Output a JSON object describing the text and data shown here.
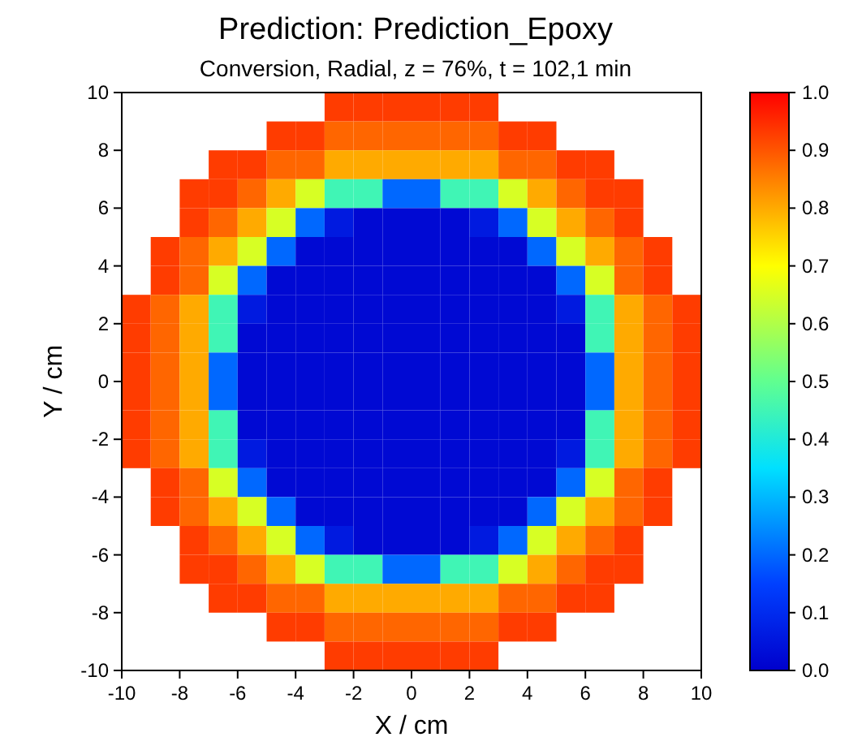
{
  "chart_data": {
    "type": "heatmap",
    "title": "Prediction: Prediction_Epoxy",
    "subtitle": "Conversion, Radial, z = 76%, t = 102,1 min",
    "xlabel": "X / cm",
    "ylabel": "Y / cm",
    "xlim": [
      -10,
      10
    ],
    "ylim": [
      -10,
      10
    ],
    "xticks": [
      -10,
      -8,
      -6,
      -4,
      -2,
      0,
      2,
      4,
      6,
      8,
      10
    ],
    "yticks": [
      -10,
      -8,
      -6,
      -4,
      -2,
      0,
      2,
      4,
      6,
      8,
      10
    ],
    "clim": [
      0,
      1
    ],
    "cticks": [
      {
        "value": 0,
        "label": "0.0"
      },
      {
        "value": 0.1,
        "label": "0.1"
      },
      {
        "value": 0.2,
        "label": "0.2"
      },
      {
        "value": 0.3,
        "label": "0.3"
      },
      {
        "value": 0.4,
        "label": "0.4"
      },
      {
        "value": 0.5,
        "label": "0.5"
      },
      {
        "value": 0.6,
        "label": "0.6"
      },
      {
        "value": 0.7,
        "label": "0.7"
      },
      {
        "value": 0.8,
        "label": "0.8"
      },
      {
        "value": 0.9,
        "label": "0.9"
      },
      {
        "value": 1,
        "label": "1.0"
      }
    ],
    "cells": [
      [
        null,
        null,
        null,
        null,
        null,
        null,
        null,
        0.93,
        0.93,
        0.93,
        0.93,
        0.93,
        0.93,
        null,
        null,
        null,
        null,
        null,
        null,
        null
      ],
      [
        null,
        null,
        null,
        null,
        null,
        0.93,
        0.93,
        0.88,
        0.88,
        0.88,
        0.88,
        0.88,
        0.88,
        0.93,
        0.93,
        null,
        null,
        null,
        null,
        null
      ],
      [
        null,
        null,
        null,
        0.93,
        0.93,
        0.88,
        0.88,
        0.8,
        0.8,
        0.8,
        0.8,
        0.8,
        0.8,
        0.88,
        0.88,
        0.93,
        0.93,
        null,
        null,
        null
      ],
      [
        null,
        null,
        0.93,
        0.93,
        0.88,
        0.8,
        0.65,
        0.45,
        0.45,
        0.2,
        0.2,
        0.45,
        0.45,
        0.65,
        0.8,
        0.88,
        0.93,
        0.93,
        null,
        null
      ],
      [
        null,
        null,
        0.93,
        0.88,
        0.8,
        0.65,
        0.2,
        0.06,
        0.02,
        0.02,
        0.02,
        0.02,
        0.06,
        0.2,
        0.65,
        0.8,
        0.88,
        0.93,
        null,
        null
      ],
      [
        null,
        0.93,
        0.88,
        0.8,
        0.65,
        0.2,
        0.02,
        0.02,
        0.02,
        0.02,
        0.02,
        0.02,
        0.02,
        0.02,
        0.2,
        0.65,
        0.8,
        0.88,
        0.93,
        null
      ],
      [
        null,
        0.93,
        0.88,
        0.65,
        0.2,
        0.02,
        0.02,
        0.02,
        0.02,
        0.02,
        0.02,
        0.02,
        0.02,
        0.02,
        0.02,
        0.2,
        0.65,
        0.88,
        0.93,
        null
      ],
      [
        0.93,
        0.88,
        0.8,
        0.45,
        0.06,
        0.02,
        0.02,
        0.02,
        0.02,
        0.02,
        0.02,
        0.02,
        0.02,
        0.02,
        0.02,
        0.06,
        0.45,
        0.8,
        0.88,
        0.93
      ],
      [
        0.93,
        0.88,
        0.8,
        0.45,
        0.02,
        0.02,
        0.02,
        0.02,
        0.02,
        0.02,
        0.02,
        0.02,
        0.02,
        0.02,
        0.02,
        0.02,
        0.45,
        0.8,
        0.88,
        0.93
      ],
      [
        0.93,
        0.88,
        0.8,
        0.2,
        0.02,
        0.02,
        0.02,
        0.02,
        0.02,
        0.02,
        0.02,
        0.02,
        0.02,
        0.02,
        0.02,
        0.02,
        0.2,
        0.8,
        0.88,
        0.93
      ],
      [
        0.93,
        0.88,
        0.8,
        0.2,
        0.02,
        0.02,
        0.02,
        0.02,
        0.02,
        0.02,
        0.02,
        0.02,
        0.02,
        0.02,
        0.02,
        0.02,
        0.2,
        0.8,
        0.88,
        0.93
      ],
      [
        0.93,
        0.88,
        0.8,
        0.45,
        0.02,
        0.02,
        0.02,
        0.02,
        0.02,
        0.02,
        0.02,
        0.02,
        0.02,
        0.02,
        0.02,
        0.02,
        0.45,
        0.8,
        0.88,
        0.93
      ],
      [
        0.93,
        0.88,
        0.8,
        0.45,
        0.06,
        0.02,
        0.02,
        0.02,
        0.02,
        0.02,
        0.02,
        0.02,
        0.02,
        0.02,
        0.02,
        0.06,
        0.45,
        0.8,
        0.88,
        0.93
      ],
      [
        null,
        0.93,
        0.88,
        0.65,
        0.2,
        0.02,
        0.02,
        0.02,
        0.02,
        0.02,
        0.02,
        0.02,
        0.02,
        0.02,
        0.02,
        0.2,
        0.65,
        0.88,
        0.93,
        null
      ],
      [
        null,
        0.93,
        0.88,
        0.8,
        0.65,
        0.2,
        0.02,
        0.02,
        0.02,
        0.02,
        0.02,
        0.02,
        0.02,
        0.02,
        0.2,
        0.65,
        0.8,
        0.88,
        0.93,
        null
      ],
      [
        null,
        null,
        0.93,
        0.88,
        0.8,
        0.65,
        0.2,
        0.06,
        0.02,
        0.02,
        0.02,
        0.02,
        0.06,
        0.2,
        0.65,
        0.8,
        0.88,
        0.93,
        null,
        null
      ],
      [
        null,
        null,
        0.93,
        0.93,
        0.88,
        0.8,
        0.65,
        0.45,
        0.45,
        0.2,
        0.2,
        0.45,
        0.45,
        0.65,
        0.8,
        0.88,
        0.93,
        0.93,
        null,
        null
      ],
      [
        null,
        null,
        null,
        0.93,
        0.93,
        0.88,
        0.88,
        0.8,
        0.8,
        0.8,
        0.8,
        0.8,
        0.8,
        0.88,
        0.88,
        0.93,
        0.93,
        null,
        null,
        null
      ],
      [
        null,
        null,
        null,
        null,
        null,
        0.93,
        0.93,
        0.88,
        0.88,
        0.88,
        0.88,
        0.88,
        0.88,
        0.93,
        0.93,
        null,
        null,
        null,
        null,
        null
      ],
      [
        null,
        null,
        null,
        null,
        null,
        null,
        null,
        0.93,
        0.93,
        0.93,
        0.93,
        0.93,
        0.93,
        null,
        null,
        null,
        null,
        null,
        null,
        null
      ]
    ]
  }
}
